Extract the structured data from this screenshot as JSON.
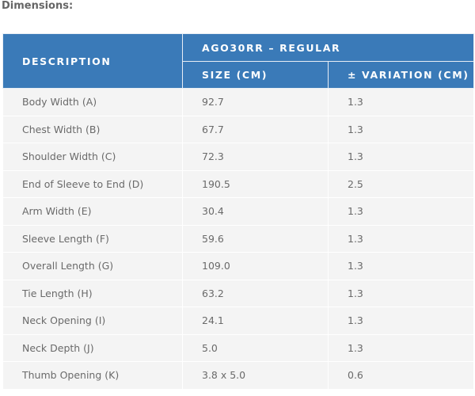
{
  "title": "Dimensions:",
  "header": {
    "description": "DESCRIPTION",
    "group": "AGO30RR – REGULAR",
    "size": "SIZE (CM)",
    "variation": "± VARIATION (CM)"
  },
  "rows": [
    {
      "desc": "Body Width (A)",
      "size": "92.7",
      "var": "1.3"
    },
    {
      "desc": "Chest Width (B)",
      "size": "67.7",
      "var": "1.3"
    },
    {
      "desc": "Shoulder Width (C)",
      "size": "72.3",
      "var": "1.3"
    },
    {
      "desc": "End of Sleeve to End (D)",
      "size": "190.5",
      "var": "2.5"
    },
    {
      "desc": "Arm Width (E)",
      "size": "30.4",
      "var": "1.3"
    },
    {
      "desc": "Sleeve Length (F)",
      "size": "59.6",
      "var": "1.3"
    },
    {
      "desc": "Overall Length (G)",
      "size": "109.0",
      "var": "1.3"
    },
    {
      "desc": "Tie Length (H)",
      "size": "63.2",
      "var": "1.3"
    },
    {
      "desc": "Neck Opening (I)",
      "size": "24.1",
      "var": "1.3"
    },
    {
      "desc": "Neck Depth (J)",
      "size": "5.0",
      "var": "1.3"
    },
    {
      "desc": "Thumb Opening (K)",
      "size": "3.8 x 5.0",
      "var": "0.6"
    }
  ],
  "colors": {
    "header_bg": "#3a7ab8",
    "row_bg": "#f4f4f4"
  }
}
